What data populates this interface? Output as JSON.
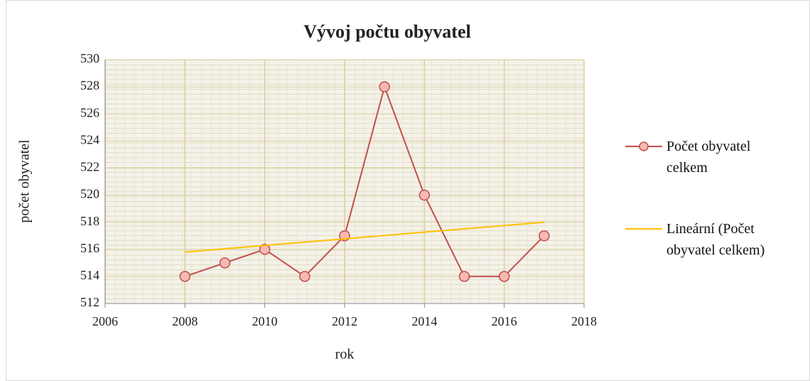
{
  "chart_data": {
    "type": "line",
    "title": "Vývoj počtu obyvatel",
    "xlabel": "rok",
    "ylabel": "počet obyvatel",
    "series": [
      {
        "name": "Počet obyvatel celkem",
        "color": "#c0504d",
        "x": [
          2008,
          2009,
          2010,
          2011,
          2012,
          2013,
          2014,
          2015,
          2016,
          2017
        ],
        "values": [
          514,
          515,
          516,
          514,
          517,
          528,
          520,
          514,
          514,
          517
        ],
        "marker": true
      },
      {
        "name": "Lineární (Počet obyvatel celkem)",
        "color": "#ffc000",
        "x": [
          2008,
          2017
        ],
        "values": [
          515.8,
          518.0
        ],
        "marker": false
      }
    ],
    "xlim": [
      2006,
      2018
    ],
    "xticks": [
      2006,
      2008,
      2010,
      2012,
      2014,
      2016,
      2018
    ],
    "ylim": [
      512,
      530
    ],
    "yticks": [
      512,
      514,
      516,
      518,
      520,
      522,
      524,
      526,
      528,
      530
    ],
    "grid": true,
    "legend": "right"
  }
}
